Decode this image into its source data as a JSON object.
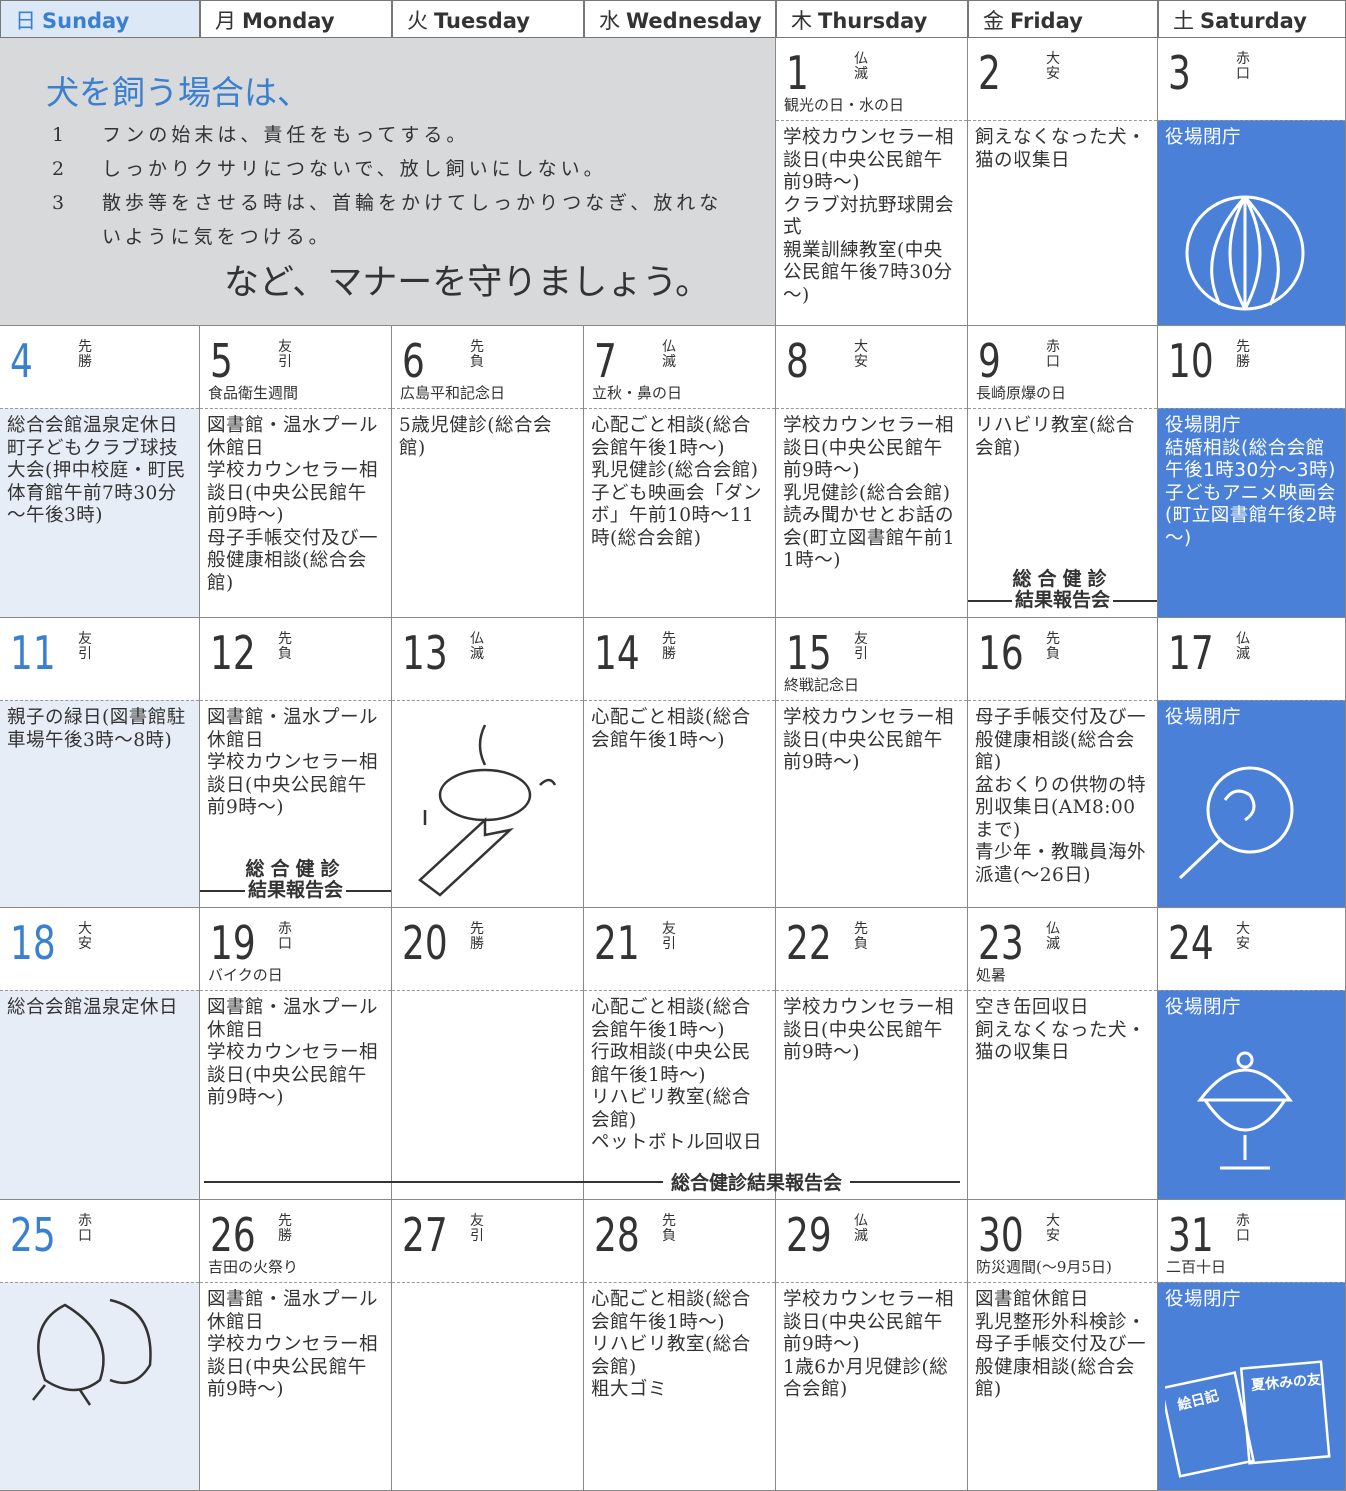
{
  "header": {
    "days": [
      {
        "kanji": "日",
        "name": "Sunday"
      },
      {
        "kanji": "月",
        "name": "Monday"
      },
      {
        "kanji": "火",
        "name": "Tuesday"
      },
      {
        "kanji": "水",
        "name": "Wednesday"
      },
      {
        "kanji": "木",
        "name": "Thursday"
      },
      {
        "kanji": "金",
        "name": "Friday"
      },
      {
        "kanji": "土",
        "name": "Saturday"
      }
    ]
  },
  "notice": {
    "title": "犬を飼う場合は、",
    "items": [
      {
        "num": "1",
        "text": "フンの始末は、責任をもってする。"
      },
      {
        "num": "2",
        "text": "しっかりクサリにつないで、放し飼いにしない。"
      },
      {
        "num": "3",
        "text": "散歩等をさせる時は、首輪をかけてしっかりつなぎ、放れないように気をつける。"
      }
    ],
    "closing": "など、マナーを守りましょう。"
  },
  "illustrations": {
    "diary": "絵日記",
    "summer_book": "夏休みの友"
  },
  "weeks": [
    {
      "days": [
        null,
        null,
        null,
        null,
        {
          "date": "1",
          "rokuyo": "仏滅",
          "note": "観光の日・水の日",
          "events": [
            "学校カウンセラー相談日(中央公民館午前9時～)",
            "クラブ対抗野球開会式",
            "親業訓練教室(中央公民館午後7時30分～)"
          ]
        },
        {
          "date": "2",
          "rokuyo": "大安",
          "events": [
            "飼えなくなった犬・猫の収集日"
          ]
        },
        {
          "date": "3",
          "rokuyo": "赤口",
          "events": [
            "役場閉庁"
          ]
        }
      ]
    },
    {
      "days": [
        {
          "date": "4",
          "rokuyo": "先勝",
          "events": [
            "総合会館温泉定休日",
            "町子どもクラブ球技大会(押中校庭・町民体育館午前7時30分～午後3時)"
          ]
        },
        {
          "date": "5",
          "rokuyo": "友引",
          "note": "食品衛生週間",
          "events": [
            "図書館・温水プール休館日",
            "学校カウンセラー相談日(中央公民館午前9時～)",
            "母子手帳交付及び一般健康相談(総合会館)"
          ]
        },
        {
          "date": "6",
          "rokuyo": "先負",
          "note": "広島平和記念日",
          "events": [
            "5歳児健診(総合会館)"
          ]
        },
        {
          "date": "7",
          "rokuyo": "仏滅",
          "note": "立秋・鼻の日",
          "events": [
            "心配ごと相談(総合会館午後1時～)",
            "乳児健診(総合会館)",
            "子ども映画会「ダンボ」午前10時～11時(総合会館)"
          ]
        },
        {
          "date": "8",
          "rokuyo": "大安",
          "events": [
            "学校カウンセラー相談日(中央公民館午前9時～)",
            "乳児健診(総合会館)",
            "読み聞かせとお話の会(町立図書館午前11時～)"
          ]
        },
        {
          "date": "9",
          "rokuyo": "赤口",
          "note": "長崎原爆の日",
          "events": [
            "リハビリ教室(総合会館)"
          ],
          "banner": [
            "総合健診",
            "結果報告会"
          ]
        },
        {
          "date": "10",
          "rokuyo": "先勝",
          "events": [
            "役場閉庁",
            "結婚相談(総合会館午後1時30分～3時)",
            "子どもアニメ映画会(町立図書館午後2時～)"
          ]
        }
      ]
    },
    {
      "days": [
        {
          "date": "11",
          "rokuyo": "友引",
          "events": [
            "親子の緑日(図書館駐車場午後3時～8時)"
          ]
        },
        {
          "date": "12",
          "rokuyo": "先負",
          "events": [
            "図書館・温水プール休館日",
            "学校カウンセラー相談日(中央公民館午前9時～)"
          ],
          "banner": [
            "総合健診",
            "結果報告会"
          ]
        },
        {
          "date": "13",
          "rokuyo": "仏滅",
          "events": []
        },
        {
          "date": "14",
          "rokuyo": "先勝",
          "events": [
            "心配ごと相談(総合会館午後1時～)"
          ]
        },
        {
          "date": "15",
          "rokuyo": "友引",
          "note": "終戦記念日",
          "events": [
            "学校カウンセラー相談日(中央公民館午前9時～)"
          ]
        },
        {
          "date": "16",
          "rokuyo": "先負",
          "events": [
            "母子手帳交付及び一般健康相談(総合会館)",
            "盆おくりの供物の特別収集日(AM8:00まで)",
            "青少年・教職員海外派遣(～26日)"
          ]
        },
        {
          "date": "17",
          "rokuyo": "仏滅",
          "events": [
            "役場閉庁"
          ]
        }
      ]
    },
    {
      "banner": "総合健診結果報告会",
      "days": [
        {
          "date": "18",
          "rokuyo": "大安",
          "events": [
            "総合会館温泉定休日"
          ]
        },
        {
          "date": "19",
          "rokuyo": "赤口",
          "note": "バイクの日",
          "events": [
            "図書館・温水プール休館日",
            "学校カウンセラー相談日(中央公民館午前9時～)"
          ]
        },
        {
          "date": "20",
          "rokuyo": "先勝",
          "events": []
        },
        {
          "date": "21",
          "rokuyo": "友引",
          "events": [
            "心配ごと相談(総合会館午後1時～)",
            "行政相談(中央公民館午後1時～)",
            "リハビリ教室(総合会館)",
            "ペットボトル回収日"
          ]
        },
        {
          "date": "22",
          "rokuyo": "先負",
          "events": [
            "学校カウンセラー相談日(中央公民館午前9時～)"
          ]
        },
        {
          "date": "23",
          "rokuyo": "仏滅",
          "note": "処暑",
          "events": [
            "空き缶回収日",
            "飼えなくなった犬・猫の収集日"
          ]
        },
        {
          "date": "24",
          "rokuyo": "大安",
          "events": [
            "役場閉庁"
          ]
        }
      ]
    },
    {
      "days": [
        {
          "date": "25",
          "rokuyo": "赤口",
          "events": []
        },
        {
          "date": "26",
          "rokuyo": "先勝",
          "note": "吉田の火祭り",
          "events": [
            "図書館・温水プール休館日",
            "学校カウンセラー相談日(中央公民館午前9時～)"
          ]
        },
        {
          "date": "27",
          "rokuyo": "友引",
          "events": []
        },
        {
          "date": "28",
          "rokuyo": "先負",
          "events": [
            "心配ごと相談(総合会館午後1時～)",
            "リハビリ教室(総合会館)",
            "粗大ゴミ"
          ]
        },
        {
          "date": "29",
          "rokuyo": "仏滅",
          "events": [
            "学校カウンセラー相談日(中央公民館午前9時～)",
            "1歳6か月児健診(総合会館)"
          ]
        },
        {
          "date": "30",
          "rokuyo": "大安",
          "note": "防災週間(～9月5日)",
          "events": [
            "図書館休館日",
            "乳児整形外科検診・母子手帳交付及び一般健康相談(総合会館)"
          ]
        },
        {
          "date": "31",
          "rokuyo": "赤口",
          "note": "二百十日",
          "events": [
            "役場閉庁"
          ]
        }
      ]
    }
  ]
}
